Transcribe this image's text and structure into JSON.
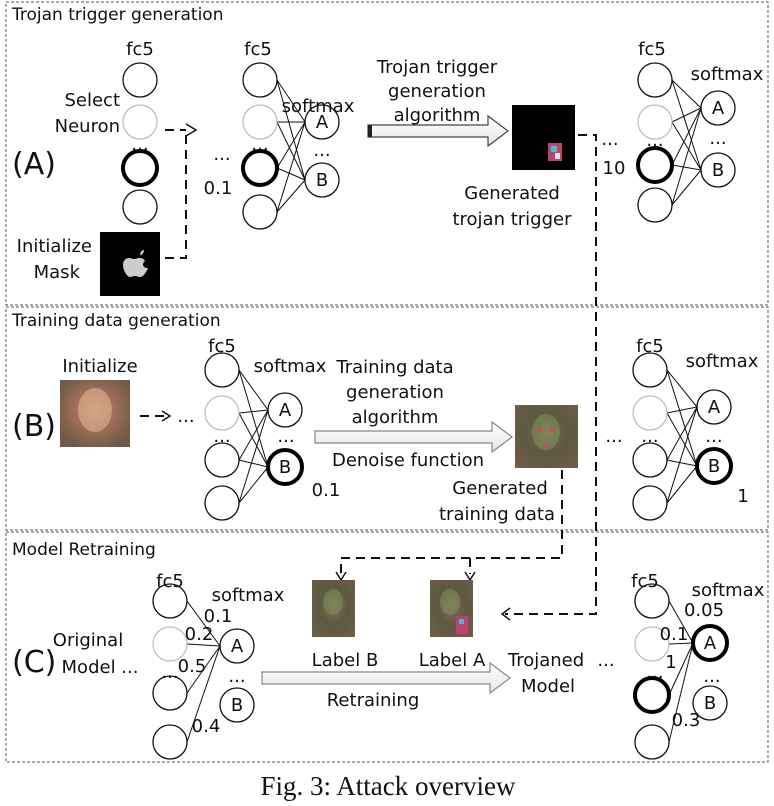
{
  "panels": {
    "a": {
      "title": "Trojan trigger generation",
      "label": "(A)",
      "select_neuron": [
        "Select",
        "Neuron"
      ],
      "initialize_mask": [
        "Initialize",
        "Mask"
      ],
      "fc5": "fc5",
      "softmax": "softmax",
      "node_a": "A",
      "node_b": "B",
      "dots": "...",
      "value_before": "0.1",
      "value_after": "10",
      "algorithm": [
        "Trojan trigger",
        "generation",
        "algorithm"
      ],
      "output": [
        "Generated",
        "trojan trigger"
      ]
    },
    "b": {
      "title": "Training data generation",
      "label": "(B)",
      "initialize": "Initialize",
      "fc5": "fc5",
      "softmax": "softmax",
      "node_a": "A",
      "node_b": "B",
      "dots": "...",
      "value_before": "0.1",
      "value_after": "1",
      "algorithm": [
        "Training data",
        "generation",
        "algorithm"
      ],
      "denoise": "Denoise function",
      "output": [
        "Generated",
        "training data"
      ]
    },
    "c": {
      "title": "Model Retraining",
      "label": "(C)",
      "original_model": [
        "Original",
        "Model ..."
      ],
      "fc5": "fc5",
      "softmax": "softmax",
      "node_a": "A",
      "node_b": "B",
      "dots": "...",
      "weights_before": [
        "0.1",
        "0.2",
        "0.5",
        "0.4"
      ],
      "weights_after": [
        "0.05",
        "0.1",
        "1",
        "0.3"
      ],
      "label_b": "Label B",
      "label_a": "Label A",
      "retraining": "Retraining",
      "trojaned_model": [
        "Trojaned",
        "Model"
      ]
    }
  },
  "caption": "Fig. 3: Attack overview"
}
